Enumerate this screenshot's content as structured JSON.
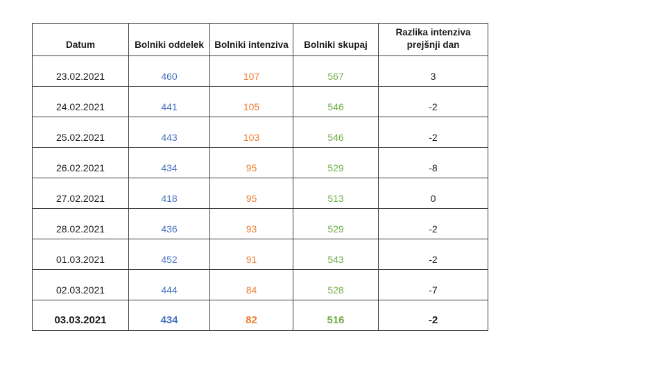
{
  "chart_data": {
    "type": "table",
    "title": "",
    "columns": [
      "Datum",
      "Bolniki oddelek",
      "Bolniki intenziva",
      "Bolniki skupaj",
      "Razlika intenziva\nprejšnji dan"
    ],
    "rows": [
      {
        "datum": "23.02.2021",
        "oddelek": "460",
        "intenziva": "107",
        "skupaj": "567",
        "razlika": "3",
        "bold": false
      },
      {
        "datum": "24.02.2021",
        "oddelek": "441",
        "intenziva": "105",
        "skupaj": "546",
        "razlika": "-2",
        "bold": false
      },
      {
        "datum": "25.02.2021",
        "oddelek": "443",
        "intenziva": "103",
        "skupaj": "546",
        "razlika": "-2",
        "bold": false
      },
      {
        "datum": "26.02.2021",
        "oddelek": "434",
        "intenziva": "95",
        "skupaj": "529",
        "razlika": "-8",
        "bold": false
      },
      {
        "datum": "27.02.2021",
        "oddelek": "418",
        "intenziva": "95",
        "skupaj": "513",
        "razlika": "0",
        "bold": false
      },
      {
        "datum": "28.02.2021",
        "oddelek": "436",
        "intenziva": "93",
        "skupaj": "529",
        "razlika": "-2",
        "bold": false
      },
      {
        "datum": "01.03.2021",
        "oddelek": "452",
        "intenziva": "91",
        "skupaj": "543",
        "razlika": "-2",
        "bold": false
      },
      {
        "datum": "02.03.2021",
        "oddelek": "444",
        "intenziva": "84",
        "skupaj": "528",
        "razlika": "-7",
        "bold": false
      },
      {
        "datum": "03.03.2021",
        "oddelek": "434",
        "intenziva": "82",
        "skupaj": "516",
        "razlika": "-2",
        "bold": true
      }
    ]
  },
  "colors": {
    "oddelek": "#4472C4",
    "intenziva": "#ED7D31",
    "skupaj": "#70AD47",
    "text": "#1a1a1a",
    "border": "#3a3a3a",
    "background": "#ffffff"
  }
}
